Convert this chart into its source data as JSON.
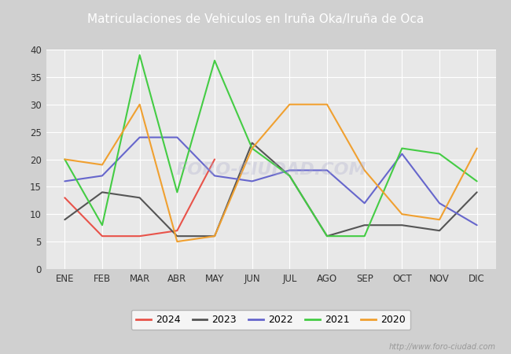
{
  "title": "Matriculaciones de Vehiculos en Iruña Oka/Iruña de Oca",
  "months": [
    "ENE",
    "FEB",
    "MAR",
    "ABR",
    "MAY",
    "JUN",
    "JUL",
    "AGO",
    "SEP",
    "OCT",
    "NOV",
    "DIC"
  ],
  "series": {
    "2024": [
      13,
      6,
      6,
      7,
      20,
      null,
      null,
      null,
      null,
      null,
      null,
      null
    ],
    "2023": [
      9,
      14,
      13,
      6,
      6,
      23,
      17,
      6,
      8,
      8,
      7,
      14
    ],
    "2022": [
      16,
      17,
      24,
      24,
      17,
      16,
      18,
      18,
      12,
      21,
      12,
      8
    ],
    "2021": [
      20,
      8,
      39,
      14,
      38,
      22,
      17,
      6,
      6,
      22,
      21,
      16
    ],
    "2020": [
      20,
      19,
      30,
      5,
      6,
      22,
      30,
      30,
      18,
      10,
      9,
      22
    ]
  },
  "colors": {
    "2024": "#e8534a",
    "2023": "#555555",
    "2022": "#6666cc",
    "2021": "#44cc44",
    "2020": "#f0a030"
  },
  "ylim": [
    0,
    40
  ],
  "yticks": [
    0,
    5,
    10,
    15,
    20,
    25,
    30,
    35,
    40
  ],
  "figure_bg": "#d0d0d0",
  "plot_bg": "#e8e8e8",
  "title_bg": "#4466bb",
  "title_color": "white",
  "title_fontsize": 11,
  "watermark": "http://www.foro-ciudad.com",
  "watermark_center": "FORO-CIUDAD.COM"
}
